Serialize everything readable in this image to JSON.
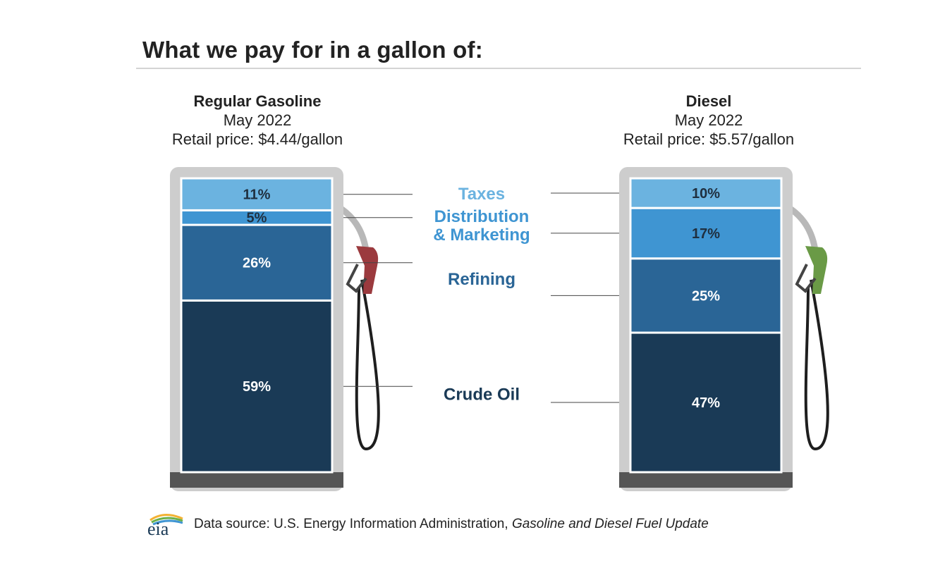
{
  "title": "What we pay for in a gallon of:",
  "pumps": [
    {
      "name": "Regular Gasoline",
      "date": "May 2022",
      "price_text": "Retail price: $4.44/gallon",
      "handle_color": "#9b3a3e"
    },
    {
      "name": "Diesel",
      "date": "May 2022",
      "price_text": "Retail price: $5.57/gallon",
      "handle_color": "#6a9a46"
    }
  ],
  "chart_data": {
    "type": "bar",
    "stacked": true,
    "categories": [
      "Regular Gasoline",
      "Diesel"
    ],
    "series": [
      {
        "name": "Crude Oil",
        "values": [
          59,
          47
        ],
        "labels": [
          "59%",
          "47%"
        ],
        "color": "#1a3a56",
        "text_color": "#ffffff"
      },
      {
        "name": "Refining",
        "values": [
          26,
          25
        ],
        "labels": [
          "26%",
          "25%"
        ],
        "color": "#2a6596",
        "text_color": "#ffffff"
      },
      {
        "name": "Distribution\n& Marketing",
        "values": [
          5,
          17
        ],
        "labels": [
          "5%",
          "17%"
        ],
        "color": "#3f95d2",
        "text_color": "#1f2f3f"
      },
      {
        "name": "Taxes",
        "values": [
          11,
          10
        ],
        "labels": [
          "11%",
          "10%"
        ],
        "color": "#6bb3e0",
        "text_color": "#1f2f3f"
      }
    ],
    "category_label_colors": [
      "#1a3a56",
      "#2a6596",
      "#3f95d2",
      "#6bb3e0"
    ]
  },
  "footer": {
    "logo_text": "eia",
    "source_prefix": "Data source: U.S. Energy Information Administration, ",
    "source_title": "Gasoline and Diesel Fuel Update"
  }
}
